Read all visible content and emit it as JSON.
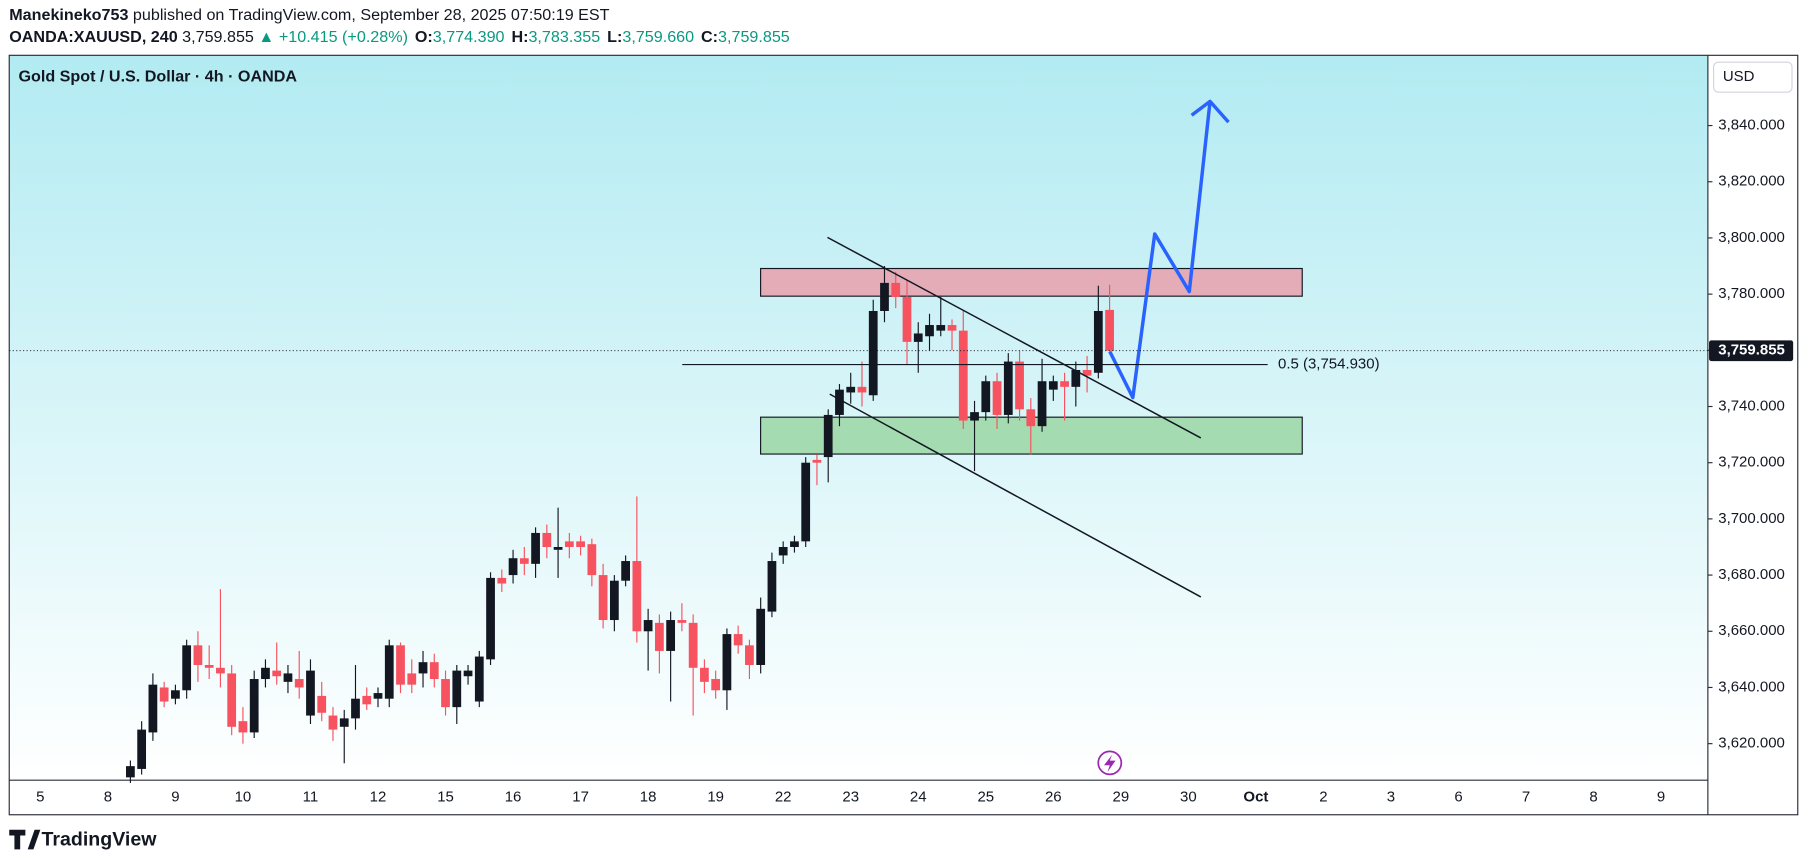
{
  "header": {
    "author": "Manekineko753",
    "published": "published on TradingView.com, September 28, 2025 07:50:19 EST",
    "symbol": "OANDA:XAUUSD, 240",
    "last": "3,759.855",
    "change": "▲ +10.415 (+0.28%)",
    "ohlc": [
      {
        "key": "O:",
        "value": "3,774.390"
      },
      {
        "key": "H:",
        "value": "3,783.355"
      },
      {
        "key": "L:",
        "value": "3,759.660"
      },
      {
        "key": "C:",
        "value": "3,759.855"
      }
    ]
  },
  "chart_data": {
    "type": "candlestick",
    "title": "Gold Spot / U.S. Dollar · 4h · OANDA",
    "currency": "USD",
    "up_color": "#131722",
    "down_color": "#f7525f",
    "x_labels": [
      "5",
      "8",
      "9",
      "10",
      "11",
      "12",
      "15",
      "16",
      "17",
      "18",
      "19",
      "22",
      "23",
      "24",
      "25",
      "26",
      "29",
      "30",
      "Oct",
      "2",
      "3",
      "6",
      "7",
      "8",
      "9"
    ],
    "open": [
      3608,
      3611,
      3624,
      3640,
      3636,
      3639,
      3655,
      3648,
      3647,
      3645,
      3628,
      3624,
      3643,
      3646,
      3642,
      3643,
      3630,
      3637,
      3630,
      3626,
      3629,
      3637,
      3636,
      3636,
      3655,
      3645,
      3645,
      3649,
      3643,
      3633,
      3644,
      3635,
      3650,
      3679,
      3680,
      3686,
      3684,
      3695,
      3689,
      3692,
      3692,
      3691,
      3680,
      3664,
      3678,
      3685,
      3660,
      3663,
      3653,
      3664,
      3663,
      3647,
      3643,
      3639,
      3659,
      3655,
      3648,
      3667,
      3687,
      3690,
      3692,
      3721,
      3722,
      3737,
      3745,
      3747,
      3744,
      3774,
      3784,
      3779,
      3763,
      3765,
      3767,
      3769,
      3767,
      3735,
      3738,
      3749,
      3737,
      3756,
      3739,
      3733,
      3746,
      3749,
      3747,
      3753,
      3752,
      3774.39
    ],
    "high": [
      3614,
      3628,
      3645,
      3642,
      3641,
      3657,
      3660,
      3655,
      3675,
      3648,
      3633,
      3646,
      3650,
      3656,
      3648,
      3653,
      3650,
      3642,
      3633,
      3632,
      3648,
      3640,
      3640,
      3657,
      3656,
      3650,
      3653,
      3652,
      3646,
      3648,
      3648,
      3653,
      3681,
      3682,
      3689,
      3690,
      3697,
      3698,
      3704,
      3695,
      3694,
      3693,
      3684,
      3680,
      3687,
      3708,
      3668,
      3666,
      3667,
      3670,
      3666,
      3650,
      3646,
      3661,
      3662,
      3657,
      3672,
      3688,
      3692,
      3694,
      3722,
      3723,
      3739,
      3748,
      3752,
      3756,
      3778,
      3790,
      3788,
      3785,
      3770,
      3773,
      3779,
      3771,
      3774,
      3742,
      3751,
      3752,
      3759,
      3760,
      3743,
      3757,
      3751,
      3752,
      3756,
      3758,
      3783,
      3783.355
    ],
    "low": [
      3606,
      3609,
      3621,
      3633,
      3634,
      3636,
      3642,
      3643,
      3640,
      3623,
      3620,
      3622,
      3640,
      3641,
      3638,
      3636,
      3627,
      3628,
      3621,
      3613,
      3625,
      3632,
      3633,
      3633,
      3638,
      3638,
      3640,
      3640,
      3630,
      3627,
      3641,
      3633,
      3648,
      3674,
      3677,
      3680,
      3679,
      3686,
      3679,
      3686,
      3687,
      3676,
      3661,
      3660,
      3676,
      3656,
      3646,
      3645,
      3635,
      3660,
      3630,
      3638,
      3636,
      3632,
      3652,
      3643,
      3645,
      3665,
      3684,
      3688,
      3690,
      3712,
      3713,
      3733,
      3741,
      3740,
      3742,
      3770,
      3775,
      3755,
      3752,
      3760,
      3765,
      3760,
      3732,
      3717,
      3735,
      3732,
      3734,
      3735,
      3723,
      3731,
      3742,
      3735,
      3740,
      3745,
      3750,
      3759.66
    ],
    "close": [
      3612,
      3625,
      3641,
      3635,
      3639,
      3655,
      3648,
      3647,
      3645,
      3626,
      3624,
      3643,
      3647,
      3644,
      3645,
      3640,
      3646,
      3631,
      3625,
      3629,
      3636,
      3634,
      3638,
      3655,
      3641,
      3641,
      3649,
      3643,
      3633,
      3646,
      3646,
      3651,
      3679,
      3677,
      3686,
      3684,
      3695,
      3690,
      3690,
      3690,
      3690,
      3680,
      3664,
      3678,
      3685,
      3660,
      3664,
      3653,
      3664,
      3663,
      3647,
      3642,
      3639,
      3659,
      3655,
      3648,
      3668,
      3685,
      3690,
      3692,
      3720,
      3720,
      3737,
      3746,
      3747,
      3745,
      3774,
      3784,
      3779,
      3763,
      3766,
      3769,
      3769,
      3767,
      3735,
      3738,
      3749,
      3737,
      3756,
      3739,
      3733,
      3749,
      3749,
      3747,
      3753,
      3751,
      3774,
      3759.855
    ],
    "ylim": [
      3607,
      3865
    ],
    "yticks": [
      {
        "value": 3620,
        "label": "3,620.000"
      },
      {
        "value": 3640,
        "label": "3,640.000"
      },
      {
        "value": 3660,
        "label": "3,660.000"
      },
      {
        "value": 3680,
        "label": "3,680.000"
      },
      {
        "value": 3700,
        "label": "3,700.000"
      },
      {
        "value": 3720,
        "label": "3,720.000"
      },
      {
        "value": 3740,
        "label": "3,740.000"
      },
      {
        "value": 3760,
        "label": "3,760.000"
      },
      {
        "value": 3780,
        "label": "3,780.000"
      },
      {
        "value": 3800,
        "label": "3,800.000"
      },
      {
        "value": 3820,
        "label": "3,820.000"
      },
      {
        "value": 3840,
        "label": "3,840.000"
      }
    ],
    "last_price": {
      "value": 3759.855,
      "label": "3,759.855"
    },
    "fib": {
      "value": 3754.93,
      "label": "0.5 (3,754.930)"
    },
    "brand": "TradingView"
  }
}
